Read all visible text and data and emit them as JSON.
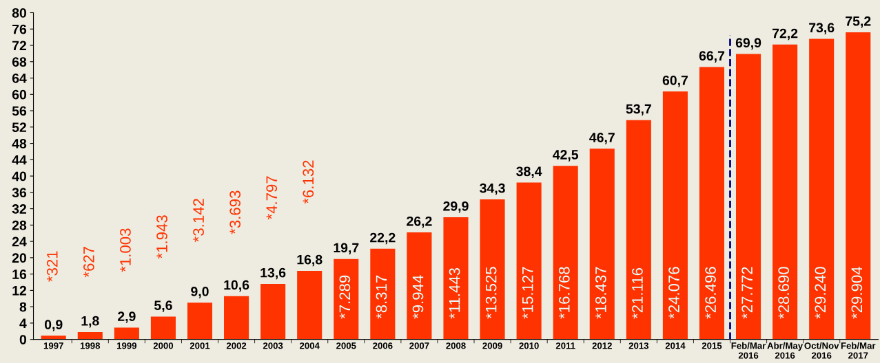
{
  "chart_data": {
    "type": "bar",
    "categories": [
      "1997",
      "1998",
      "1999",
      "2000",
      "2001",
      "2002",
      "2003",
      "2004",
      "2005",
      "2006",
      "2007",
      "2008",
      "2009",
      "2010",
      "2011",
      "2012",
      "2013",
      "2014",
      "2015",
      "Feb/Mar\n2016",
      "Abr/May\n2016",
      "Oct/Nov\n2016",
      "Feb/Mar\n2017"
    ],
    "values": [
      0.9,
      1.8,
      2.9,
      5.6,
      9.0,
      10.6,
      13.6,
      16.8,
      19.7,
      22.2,
      26.2,
      29.9,
      34.3,
      38.4,
      42.5,
      46.7,
      53.7,
      60.7,
      66.7,
      69.9,
      72.2,
      73.6,
      75.2
    ],
    "value_labels": [
      "0,9",
      "1,8",
      "2,9",
      "5,6",
      "9,0",
      "10,6",
      "13,6",
      "16,8",
      "19,7",
      "22,2",
      "26,2",
      "29,9",
      "34,3",
      "38,4",
      "42,5",
      "46,7",
      "53,7",
      "60,7",
      "66,7",
      "69,9",
      "72,2",
      "73,6",
      "75,2"
    ],
    "color": "#ff3300",
    "ylim": [
      0,
      80
    ],
    "yticks": [
      0,
      4,
      8,
      12,
      16,
      20,
      24,
      28,
      32,
      36,
      40,
      44,
      48,
      52,
      56,
      60,
      64,
      68,
      72,
      76,
      80
    ],
    "annotations": [
      "*321",
      "*627",
      "*1.003",
      "*1.943",
      "*3.142",
      "*3.693",
      "*4.797",
      "*6.132",
      "*7.289",
      "*8.317",
      "*9.944",
      "*11.443",
      "*13.525",
      "*15.127",
      "*16.768",
      "*18.437",
      "*21.116",
      "*24.076",
      "*26.496",
      "*27.772",
      "*28.690",
      "*29.240",
      "*29.904"
    ],
    "ref_lines": [
      {
        "axis": "x",
        "value": "Feb/Mar\n2016",
        "color": "#000080",
        "line_style": "dashed"
      }
    ],
    "grid": false
  }
}
